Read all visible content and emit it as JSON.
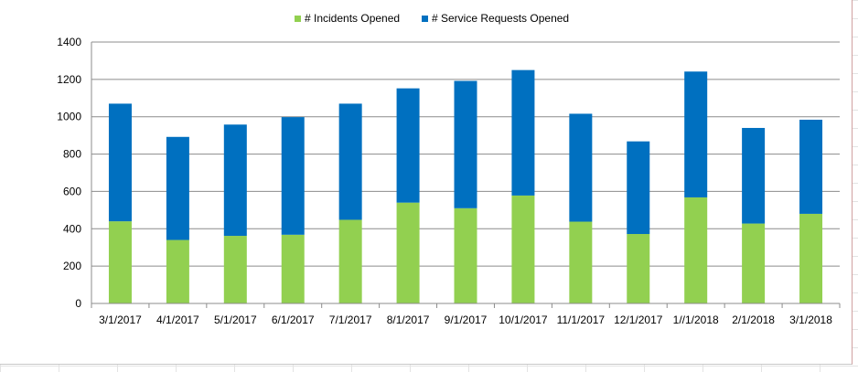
{
  "chart_data": {
    "type": "bar",
    "stacked": true,
    "categories": [
      "3/1/2017",
      "4/1/2017",
      "5/1/2017",
      "6/1/2017",
      "7/1/2017",
      "8/1/2017",
      "9/1/2017",
      "10/1/2017",
      "11/1/2017",
      "12/1/2017",
      "1//1/2018",
      "2/1/2018",
      "3/1/2018"
    ],
    "series": [
      {
        "name": "# Incidents Opened",
        "color": "#92D050",
        "values": [
          440,
          340,
          362,
          368,
          448,
          540,
          510,
          578,
          438,
          372,
          568,
          428,
          480
        ]
      },
      {
        "name": "# Service Requests Opened",
        "color": "#0070C0",
        "values": [
          630,
          552,
          596,
          630,
          622,
          612,
          682,
          672,
          578,
          496,
          674,
          512,
          504
        ]
      }
    ],
    "y_ticks": [
      "0",
      "200",
      "400",
      "600",
      "800",
      "1000",
      "1200",
      "1400"
    ],
    "ylim": [
      0,
      1400
    ],
    "grid": true,
    "legend_position": "top-center",
    "title": "",
    "xlabel": "",
    "ylabel": ""
  }
}
